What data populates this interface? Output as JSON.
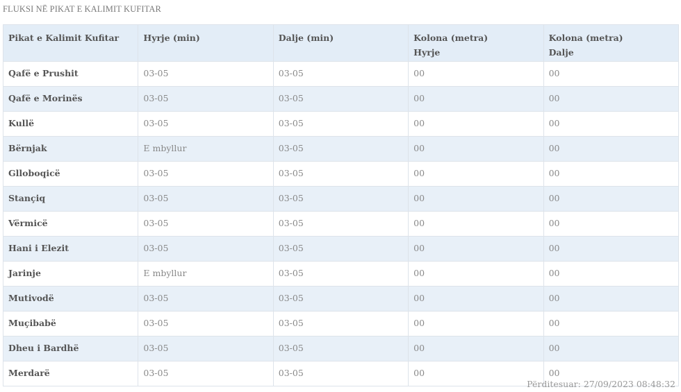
{
  "title": "FLUKSI NË PIKAT E KALIMIT KUFITAR",
  "headers": [
    {
      "line1": "Pikat e Kalimit Kufitar",
      "line2": ""
    },
    {
      "line1": "Hyrje (min)",
      "line2": ""
    },
    {
      "line1": "Dalje (min)",
      "line2": ""
    },
    {
      "line1": "Kolona (metra)",
      "line2": "Hyrje"
    },
    {
      "line1": "Kolona (metra)",
      "line2": "Dalje"
    }
  ],
  "rows": [
    [
      "Qafë e Prushit",
      "03-05",
      "03-05",
      "00",
      "00"
    ],
    [
      "Qafë e Morinës",
      "03-05",
      "03-05",
      "00",
      "00"
    ],
    [
      "Kullë",
      "03-05",
      "03-05",
      "00",
      "00"
    ],
    [
      "Bërnjak",
      "E mbyllur",
      "03-05",
      "00",
      "00"
    ],
    [
      "Glloboqicë",
      "03-05",
      "03-05",
      "00",
      "00"
    ],
    [
      "Stançiq",
      "03-05",
      "03-05",
      "00",
      "00"
    ],
    [
      "Vërmicë",
      "03-05",
      "03-05",
      "00",
      "00"
    ],
    [
      "Hani i Elezit",
      "03-05",
      "03-05",
      "00",
      "00"
    ],
    [
      "Jarinje",
      "E mbyllur",
      "03-05",
      "00",
      "00"
    ],
    [
      "Mutivodë",
      "03-05",
      "03-05",
      "00",
      "00"
    ],
    [
      "Muçibabë",
      "03-05",
      "03-05",
      "00",
      "00"
    ],
    [
      "Dheu i Bardhë",
      "03-05",
      "03-05",
      "00",
      "00"
    ],
    [
      "Merdarë",
      "03-05",
      "03-05",
      "00",
      "00"
    ]
  ],
  "updated": "Përditesuar: 27/09/2023 08:48:32"
}
